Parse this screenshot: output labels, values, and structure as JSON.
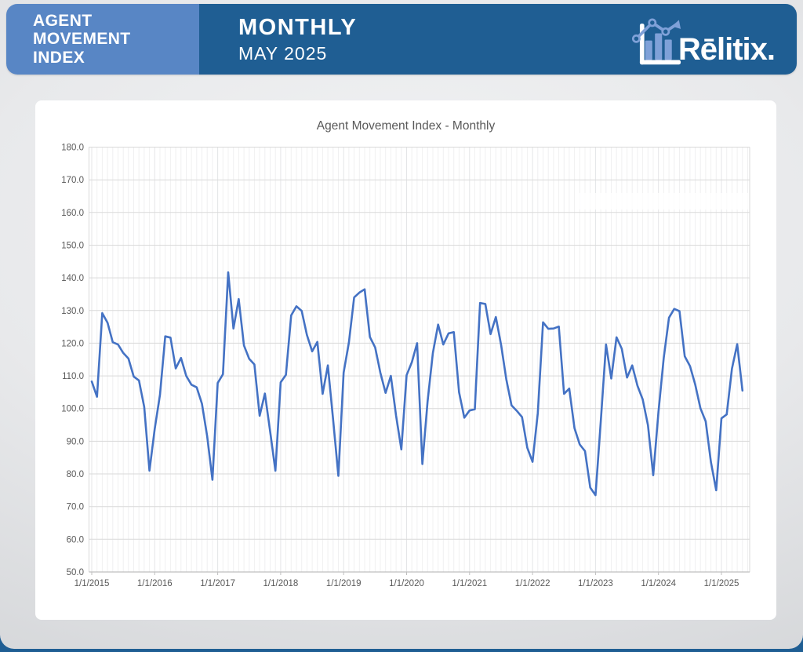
{
  "header": {
    "index_title": "AGENT\nMOVEMENT\nINDEX",
    "report_type": "MONTHLY",
    "report_date": "MAY 2025",
    "brand": "Rēlitix."
  },
  "colors": {
    "header_light": "#5886c5",
    "header_dark": "#1f5e93",
    "logo_accent": "#7fa1d8",
    "line_blue": "#4472c4",
    "grid_major": "#d9d9d9",
    "grid_month": "#f0f0f1",
    "grid_year": "#e4e5e7",
    "axis_line": "#bfbfbf",
    "axis_text": "#595959"
  },
  "chart_data": {
    "type": "line",
    "title": "Agent Movement Index - Monthly",
    "xlabel": "",
    "ylabel": "",
    "ylim": [
      50,
      180
    ],
    "y_tick_step": 10,
    "grid": true,
    "legend": "none",
    "x_start": "1/1/2015",
    "x_end": "5/1/2025",
    "x_tick_labels": [
      "1/1/2015",
      "1/1/2016",
      "1/1/2017",
      "1/1/2018",
      "1/1/2019",
      "1/1/2020",
      "1/1/2021",
      "1/1/2022",
      "1/1/2023",
      "1/1/2024",
      "1/1/2025"
    ],
    "series": [
      {
        "name": "Agent Movement Index",
        "frequency": "monthly",
        "values": [
          108.3,
          103.6,
          129.2,
          126.3,
          120.3,
          119.6,
          117.0,
          115.3,
          109.8,
          108.6,
          100.5,
          81.0,
          93.8,
          104.2,
          122.1,
          121.7,
          112.3,
          115.5,
          110.0,
          107.3,
          106.5,
          101.5,
          91.5,
          78.2,
          107.8,
          110.5,
          141.7,
          124.5,
          133.5,
          119.3,
          115.2,
          113.5,
          97.8,
          104.6,
          93.0,
          81.0,
          108.0,
          110.3,
          128.5,
          131.3,
          129.9,
          122.5,
          117.5,
          120.4,
          104.5,
          113.2,
          96.6,
          79.4,
          111.0,
          120.2,
          134.0,
          135.5,
          136.5,
          121.9,
          118.7,
          111.0,
          104.8,
          110.0,
          97.8,
          87.5,
          110.2,
          114.2,
          120.0,
          83.0,
          102.3,
          117.0,
          125.7,
          119.6,
          123.0,
          123.4,
          105.0,
          97.2,
          99.4,
          99.8,
          132.3,
          132.0,
          122.8,
          128.0,
          119.5,
          109.0,
          101.0,
          99.3,
          97.4,
          88.0,
          83.7,
          98.6,
          126.4,
          124.4,
          124.5,
          125.1,
          104.5,
          106.1,
          94.0,
          89.0,
          87.0,
          75.8,
          73.5,
          96.0,
          119.6,
          109.2,
          121.8,
          118.3,
          109.5,
          113.2,
          107.0,
          102.8,
          94.9,
          79.6,
          99.0,
          115.5,
          127.8,
          130.5,
          129.8,
          116.0,
          113.0,
          107.4,
          100.1,
          96.1,
          83.6,
          75.0,
          97.0,
          98.2,
          112.2,
          119.7,
          105.5
        ]
      }
    ]
  }
}
